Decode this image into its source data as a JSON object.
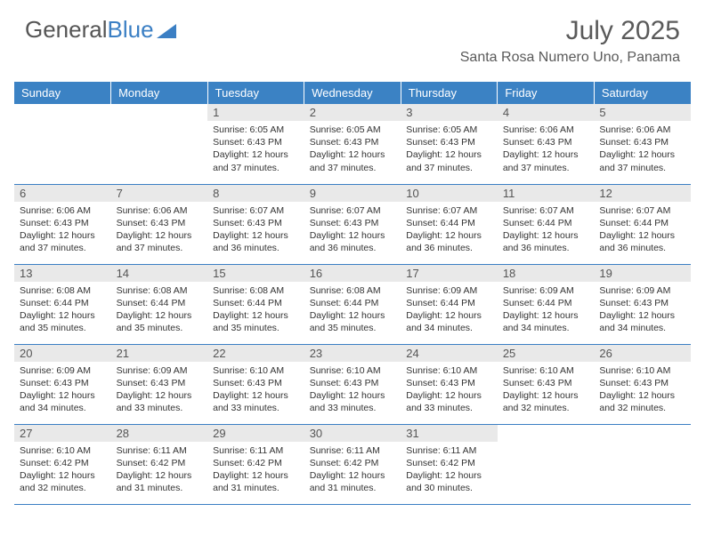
{
  "logo": {
    "text_gray": "General",
    "text_blue": "Blue"
  },
  "title": "July 2025",
  "location": "Santa Rosa Numero Uno, Panama",
  "colors": {
    "header_bg": "#3b82c4",
    "header_text": "#ffffff",
    "daynum_bg": "#e9e9e9",
    "border": "#3b7fc4",
    "text": "#333333",
    "title_text": "#5a5a5a"
  },
  "day_headers": [
    "Sunday",
    "Monday",
    "Tuesday",
    "Wednesday",
    "Thursday",
    "Friday",
    "Saturday"
  ],
  "weeks": [
    [
      {
        "num": "",
        "sunrise": "",
        "sunset": "",
        "daylight": "",
        "empty": true
      },
      {
        "num": "",
        "sunrise": "",
        "sunset": "",
        "daylight": "",
        "empty": true
      },
      {
        "num": "1",
        "sunrise": "Sunrise: 6:05 AM",
        "sunset": "Sunset: 6:43 PM",
        "daylight": "Daylight: 12 hours and 37 minutes."
      },
      {
        "num": "2",
        "sunrise": "Sunrise: 6:05 AM",
        "sunset": "Sunset: 6:43 PM",
        "daylight": "Daylight: 12 hours and 37 minutes."
      },
      {
        "num": "3",
        "sunrise": "Sunrise: 6:05 AM",
        "sunset": "Sunset: 6:43 PM",
        "daylight": "Daylight: 12 hours and 37 minutes."
      },
      {
        "num": "4",
        "sunrise": "Sunrise: 6:06 AM",
        "sunset": "Sunset: 6:43 PM",
        "daylight": "Daylight: 12 hours and 37 minutes."
      },
      {
        "num": "5",
        "sunrise": "Sunrise: 6:06 AM",
        "sunset": "Sunset: 6:43 PM",
        "daylight": "Daylight: 12 hours and 37 minutes."
      }
    ],
    [
      {
        "num": "6",
        "sunrise": "Sunrise: 6:06 AM",
        "sunset": "Sunset: 6:43 PM",
        "daylight": "Daylight: 12 hours and 37 minutes."
      },
      {
        "num": "7",
        "sunrise": "Sunrise: 6:06 AM",
        "sunset": "Sunset: 6:43 PM",
        "daylight": "Daylight: 12 hours and 37 minutes."
      },
      {
        "num": "8",
        "sunrise": "Sunrise: 6:07 AM",
        "sunset": "Sunset: 6:43 PM",
        "daylight": "Daylight: 12 hours and 36 minutes."
      },
      {
        "num": "9",
        "sunrise": "Sunrise: 6:07 AM",
        "sunset": "Sunset: 6:43 PM",
        "daylight": "Daylight: 12 hours and 36 minutes."
      },
      {
        "num": "10",
        "sunrise": "Sunrise: 6:07 AM",
        "sunset": "Sunset: 6:44 PM",
        "daylight": "Daylight: 12 hours and 36 minutes."
      },
      {
        "num": "11",
        "sunrise": "Sunrise: 6:07 AM",
        "sunset": "Sunset: 6:44 PM",
        "daylight": "Daylight: 12 hours and 36 minutes."
      },
      {
        "num": "12",
        "sunrise": "Sunrise: 6:07 AM",
        "sunset": "Sunset: 6:44 PM",
        "daylight": "Daylight: 12 hours and 36 minutes."
      }
    ],
    [
      {
        "num": "13",
        "sunrise": "Sunrise: 6:08 AM",
        "sunset": "Sunset: 6:44 PM",
        "daylight": "Daylight: 12 hours and 35 minutes."
      },
      {
        "num": "14",
        "sunrise": "Sunrise: 6:08 AM",
        "sunset": "Sunset: 6:44 PM",
        "daylight": "Daylight: 12 hours and 35 minutes."
      },
      {
        "num": "15",
        "sunrise": "Sunrise: 6:08 AM",
        "sunset": "Sunset: 6:44 PM",
        "daylight": "Daylight: 12 hours and 35 minutes."
      },
      {
        "num": "16",
        "sunrise": "Sunrise: 6:08 AM",
        "sunset": "Sunset: 6:44 PM",
        "daylight": "Daylight: 12 hours and 35 minutes."
      },
      {
        "num": "17",
        "sunrise": "Sunrise: 6:09 AM",
        "sunset": "Sunset: 6:44 PM",
        "daylight": "Daylight: 12 hours and 34 minutes."
      },
      {
        "num": "18",
        "sunrise": "Sunrise: 6:09 AM",
        "sunset": "Sunset: 6:44 PM",
        "daylight": "Daylight: 12 hours and 34 minutes."
      },
      {
        "num": "19",
        "sunrise": "Sunrise: 6:09 AM",
        "sunset": "Sunset: 6:43 PM",
        "daylight": "Daylight: 12 hours and 34 minutes."
      }
    ],
    [
      {
        "num": "20",
        "sunrise": "Sunrise: 6:09 AM",
        "sunset": "Sunset: 6:43 PM",
        "daylight": "Daylight: 12 hours and 34 minutes."
      },
      {
        "num": "21",
        "sunrise": "Sunrise: 6:09 AM",
        "sunset": "Sunset: 6:43 PM",
        "daylight": "Daylight: 12 hours and 33 minutes."
      },
      {
        "num": "22",
        "sunrise": "Sunrise: 6:10 AM",
        "sunset": "Sunset: 6:43 PM",
        "daylight": "Daylight: 12 hours and 33 minutes."
      },
      {
        "num": "23",
        "sunrise": "Sunrise: 6:10 AM",
        "sunset": "Sunset: 6:43 PM",
        "daylight": "Daylight: 12 hours and 33 minutes."
      },
      {
        "num": "24",
        "sunrise": "Sunrise: 6:10 AM",
        "sunset": "Sunset: 6:43 PM",
        "daylight": "Daylight: 12 hours and 33 minutes."
      },
      {
        "num": "25",
        "sunrise": "Sunrise: 6:10 AM",
        "sunset": "Sunset: 6:43 PM",
        "daylight": "Daylight: 12 hours and 32 minutes."
      },
      {
        "num": "26",
        "sunrise": "Sunrise: 6:10 AM",
        "sunset": "Sunset: 6:43 PM",
        "daylight": "Daylight: 12 hours and 32 minutes."
      }
    ],
    [
      {
        "num": "27",
        "sunrise": "Sunrise: 6:10 AM",
        "sunset": "Sunset: 6:42 PM",
        "daylight": "Daylight: 12 hours and 32 minutes."
      },
      {
        "num": "28",
        "sunrise": "Sunrise: 6:11 AM",
        "sunset": "Sunset: 6:42 PM",
        "daylight": "Daylight: 12 hours and 31 minutes."
      },
      {
        "num": "29",
        "sunrise": "Sunrise: 6:11 AM",
        "sunset": "Sunset: 6:42 PM",
        "daylight": "Daylight: 12 hours and 31 minutes."
      },
      {
        "num": "30",
        "sunrise": "Sunrise: 6:11 AM",
        "sunset": "Sunset: 6:42 PM",
        "daylight": "Daylight: 12 hours and 31 minutes."
      },
      {
        "num": "31",
        "sunrise": "Sunrise: 6:11 AM",
        "sunset": "Sunset: 6:42 PM",
        "daylight": "Daylight: 12 hours and 30 minutes."
      },
      {
        "num": "",
        "sunrise": "",
        "sunset": "",
        "daylight": "",
        "empty": true
      },
      {
        "num": "",
        "sunrise": "",
        "sunset": "",
        "daylight": "",
        "empty": true
      }
    ]
  ]
}
